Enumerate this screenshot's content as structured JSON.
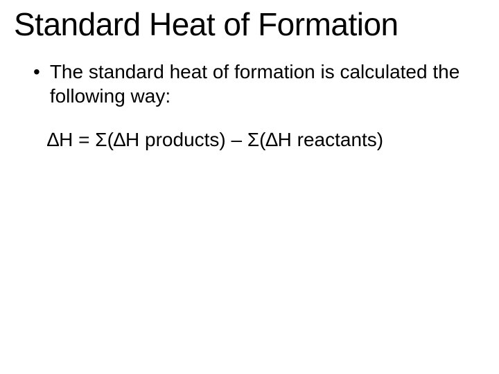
{
  "slide": {
    "title": "Standard Heat of Formation",
    "bullet": {
      "marker": "•",
      "text": "The standard heat of formation is calculated the following way:"
    },
    "formula": "∆H = Σ(∆H products) – Σ(∆H reactants)"
  },
  "style": {
    "background_color": "#ffffff",
    "text_color": "#000000",
    "title_fontsize": 46,
    "body_fontsize": 28,
    "font_family": "Arial"
  }
}
